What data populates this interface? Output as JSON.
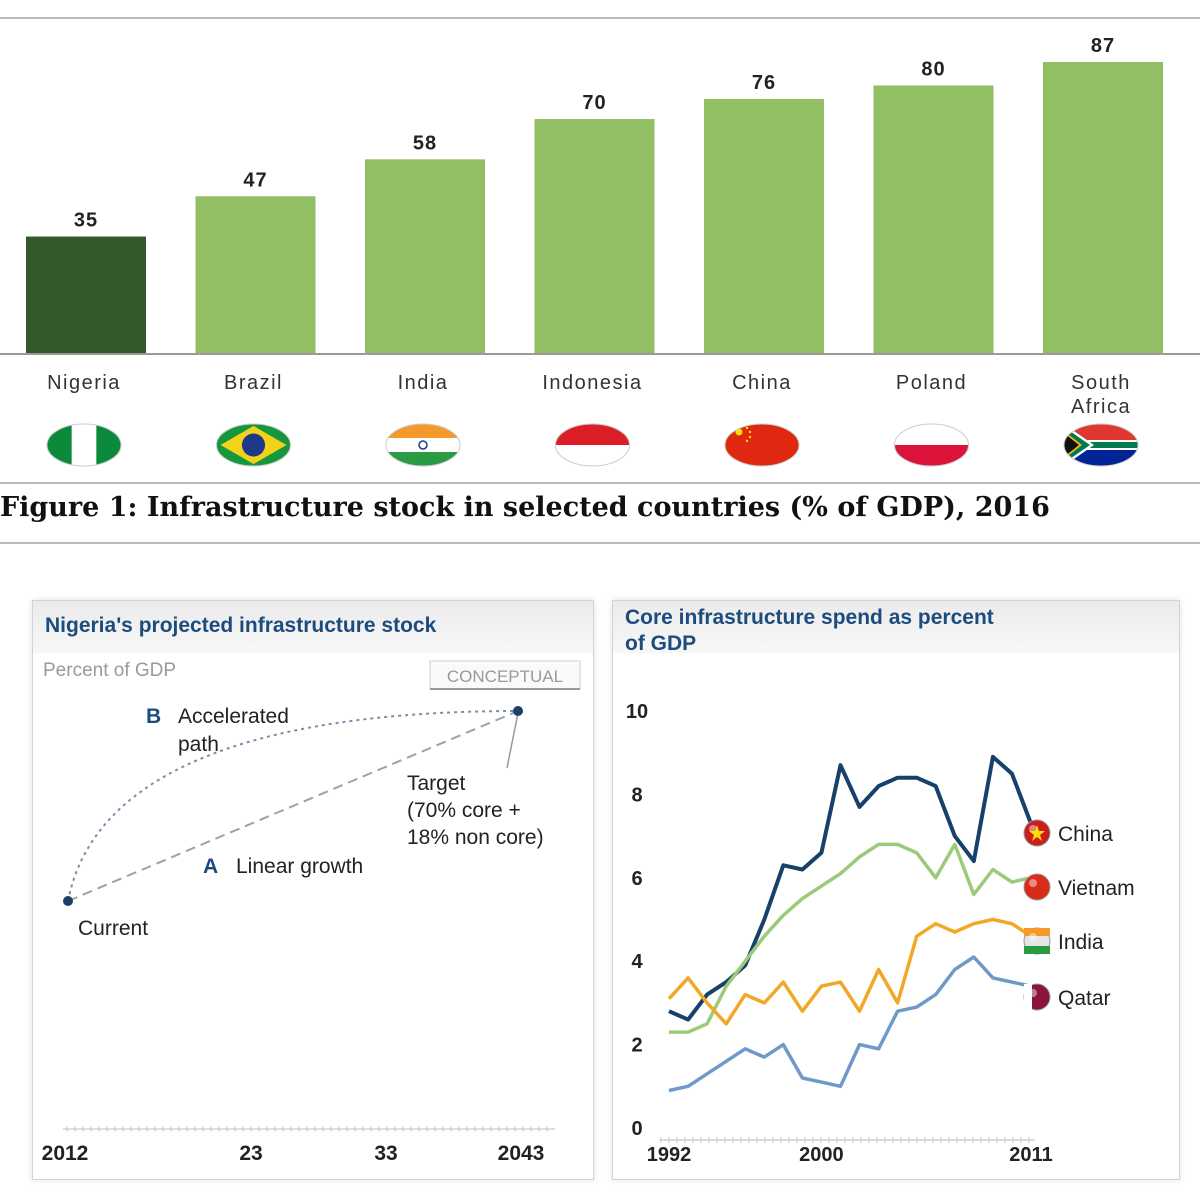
{
  "chart_data": [
    {
      "type": "bar",
      "title": "Figure 1: Infrastructure stock in selected countries (% of GDP), 2016",
      "categories": [
        "Nigeria",
        "Brazil",
        "India",
        "Indonesia",
        "China",
        "Poland",
        "South Africa"
      ],
      "values": [
        35,
        47,
        58,
        70,
        76,
        80,
        87
      ],
      "highlight": "Nigeria",
      "bar_color": "#93bf64",
      "highlight_color": "#35582a",
      "flags": [
        "nigeria-flag-icon",
        "brazil-flag-icon",
        "india-flag-icon",
        "indonesia-flag-icon",
        "china-flag-icon",
        "poland-flag-icon",
        "south-africa-flag-icon"
      ]
    },
    {
      "type": "line",
      "title": "Nigeria's projected infrastructure stock",
      "ylabel": "Percent of GDP",
      "badge": "CONCEPTUAL",
      "x_ticks": [
        "2012",
        "23",
        "33",
        "2043"
      ],
      "points": {
        "current_label": "Current",
        "target_label": "Target\n(70% core +\n18% non core)"
      },
      "paths": [
        {
          "marker": "A",
          "label": "Linear growth"
        },
        {
          "marker": "B",
          "label": "Accelerated\npath"
        }
      ]
    },
    {
      "type": "line",
      "title": "Core infrastructure spend as percent\nof GDP",
      "y_ticks": [
        "0",
        "2",
        "4",
        "6",
        "8",
        "10"
      ],
      "ylim": [
        0,
        10
      ],
      "x_ticks": [
        "1992",
        "2000",
        "2011"
      ],
      "xlim": [
        1992,
        2011
      ],
      "series": [
        {
          "name": "China",
          "color": "#17406b",
          "icon": "china-flag-icon",
          "values": [
            [
              1992,
              2.8
            ],
            [
              1993,
              2.6
            ],
            [
              1994,
              3.2
            ],
            [
              1995,
              3.5
            ],
            [
              1996,
              3.9
            ],
            [
              1997,
              5.0
            ],
            [
              1998,
              6.3
            ],
            [
              1999,
              6.2
            ],
            [
              2000,
              6.6
            ],
            [
              2001,
              8.7
            ],
            [
              2002,
              7.7
            ],
            [
              2003,
              8.2
            ],
            [
              2004,
              8.4
            ],
            [
              2005,
              8.4
            ],
            [
              2006,
              8.2
            ],
            [
              2007,
              7.0
            ],
            [
              2008,
              6.4
            ],
            [
              2009,
              8.9
            ],
            [
              2010,
              8.5
            ],
            [
              2011,
              7.3
            ]
          ]
        },
        {
          "name": "Vietnam",
          "color": "#9dc97a",
          "icon": "vietnam-flag-icon",
          "values": [
            [
              1992,
              2.3
            ],
            [
              1993,
              2.3
            ],
            [
              1994,
              2.5
            ],
            [
              1995,
              3.4
            ],
            [
              1996,
              4.0
            ],
            [
              1997,
              4.6
            ],
            [
              1998,
              5.1
            ],
            [
              1999,
              5.5
            ],
            [
              2000,
              5.8
            ],
            [
              2001,
              6.1
            ],
            [
              2002,
              6.5
            ],
            [
              2003,
              6.8
            ],
            [
              2004,
              6.8
            ],
            [
              2005,
              6.6
            ],
            [
              2006,
              6.0
            ],
            [
              2007,
              6.8
            ],
            [
              2008,
              5.6
            ],
            [
              2009,
              6.2
            ],
            [
              2010,
              5.9
            ],
            [
              2011,
              6.0
            ]
          ]
        },
        {
          "name": "India",
          "color": "#f2a826",
          "icon": "india-flag-icon",
          "values": [
            [
              1992,
              3.1
            ],
            [
              1993,
              3.6
            ],
            [
              1994,
              3.0
            ],
            [
              1995,
              2.5
            ],
            [
              1996,
              3.2
            ],
            [
              1997,
              3.0
            ],
            [
              1998,
              3.5
            ],
            [
              1999,
              2.8
            ],
            [
              2000,
              3.4
            ],
            [
              2001,
              3.5
            ],
            [
              2002,
              2.8
            ],
            [
              2003,
              3.8
            ],
            [
              2004,
              3.0
            ],
            [
              2005,
              4.6
            ],
            [
              2006,
              4.9
            ],
            [
              2007,
              4.7
            ],
            [
              2008,
              4.9
            ],
            [
              2009,
              5.0
            ],
            [
              2010,
              4.9
            ],
            [
              2011,
              4.6
            ]
          ]
        },
        {
          "name": "Qatar",
          "color": "#6f99c9",
          "icon": "qatar-flag-icon",
          "values": [
            [
              1992,
              0.9
            ],
            [
              1993,
              1.0
            ],
            [
              1994,
              1.3
            ],
            [
              1995,
              1.6
            ],
            [
              1996,
              1.9
            ],
            [
              1997,
              1.7
            ],
            [
              1998,
              2.0
            ],
            [
              1999,
              1.2
            ],
            [
              2000,
              1.1
            ],
            [
              2001,
              1.0
            ],
            [
              2002,
              2.0
            ],
            [
              2003,
              1.9
            ],
            [
              2004,
              2.8
            ],
            [
              2005,
              2.9
            ],
            [
              2006,
              3.2
            ],
            [
              2007,
              3.8
            ],
            [
              2008,
              4.1
            ],
            [
              2009,
              3.6
            ],
            [
              2010,
              3.5
            ],
            [
              2011,
              3.4
            ]
          ]
        }
      ]
    }
  ]
}
